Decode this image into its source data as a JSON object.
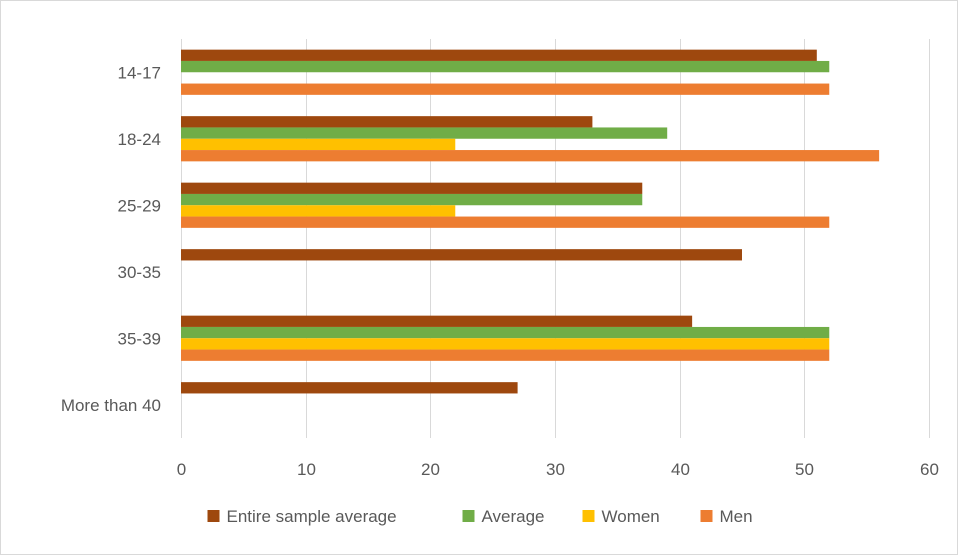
{
  "chart_data": {
    "type": "bar",
    "orientation": "horizontal",
    "title": "",
    "xlabel": "",
    "ylabel": "",
    "categories": [
      "14-17",
      "18-24",
      "25-29",
      "30-35",
      "35-39",
      "More than 40"
    ],
    "xlim": [
      0,
      60
    ],
    "x_ticks": [
      0,
      10,
      20,
      30,
      40,
      50,
      60
    ],
    "grid": true,
    "legend_position": "bottom",
    "series": [
      {
        "name": "Entire sample average",
        "color": "#9e480e",
        "values": [
          51,
          33,
          37,
          45,
          41,
          27
        ]
      },
      {
        "name": "Average",
        "color": "#70ad47",
        "values": [
          52,
          39,
          37,
          null,
          52,
          null
        ]
      },
      {
        "name": "Women",
        "color": "#ffc000",
        "values": [
          null,
          22,
          22,
          null,
          52,
          null
        ]
      },
      {
        "name": "Men",
        "color": "#ed7d31",
        "values": [
          52,
          56,
          52,
          null,
          52,
          null
        ]
      }
    ]
  }
}
